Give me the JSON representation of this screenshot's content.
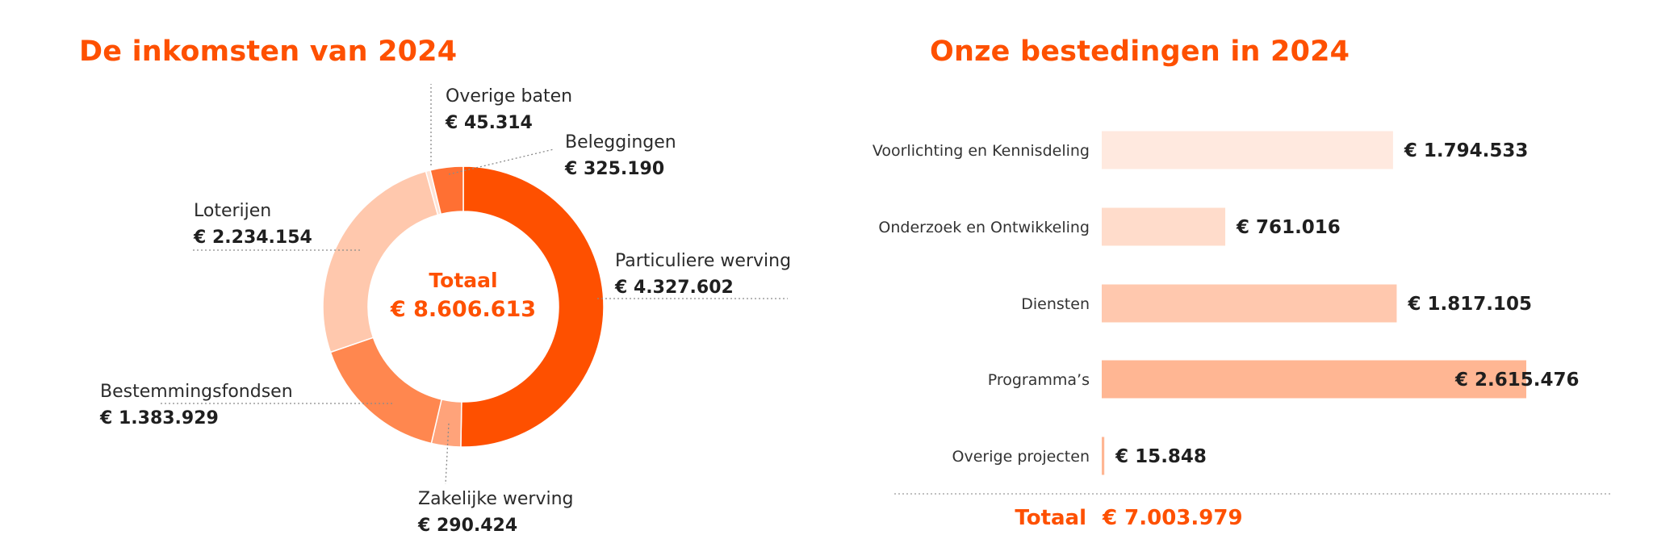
{
  "chart_data": [
    {
      "type": "pie",
      "title": "De inkomsten van 2024",
      "center_label": "Totaal",
      "center_value": "€ 8.606.613",
      "slices": [
        {
          "name": "Particuliere werving",
          "value": 4327602,
          "label": "€ 4.327.602",
          "color": "#fe5000"
        },
        {
          "name": "Zakelijke werving",
          "value": 290424,
          "label": "€ 290.424",
          "color": "#ffa37a"
        },
        {
          "name": "Bestemmingsfondsen",
          "value": 1383929,
          "label": "€ 1.383.929",
          "color": "#ff874f"
        },
        {
          "name": "Loterijen",
          "value": 2234154,
          "label": "€ 2.234.154",
          "color": "#ffc8ad"
        },
        {
          "name": "Overige baten",
          "value": 45314,
          "label": "€ 45.314",
          "color": "#ffe3d5"
        },
        {
          "name": "Beleggingen",
          "value": 325190,
          "label": "€ 325.190",
          "color": "#ff7033"
        }
      ]
    },
    {
      "type": "bar",
      "orientation": "horizontal",
      "title": "Onze bestedingen in 2024",
      "categories": [
        "Voorlichting en Kennisdeling",
        "Onderzoek en Ontwikkeling",
        "Diensten",
        "Programma’s",
        "Overige projecten"
      ],
      "values": [
        1794533,
        761016,
        1817105,
        2615476,
        15848
      ],
      "labels": [
        "€ 1.794.533",
        "€ 761.016",
        "€  1.817.105",
        "€ 2.615.476",
        "€ 15.848"
      ],
      "colors": [
        "#ffe9df",
        "#ffdccb",
        "#ffc8ae",
        "#ffb693",
        "#ffb693"
      ],
      "total_label": "Totaal",
      "total_value": "€ 7.003.979"
    }
  ]
}
